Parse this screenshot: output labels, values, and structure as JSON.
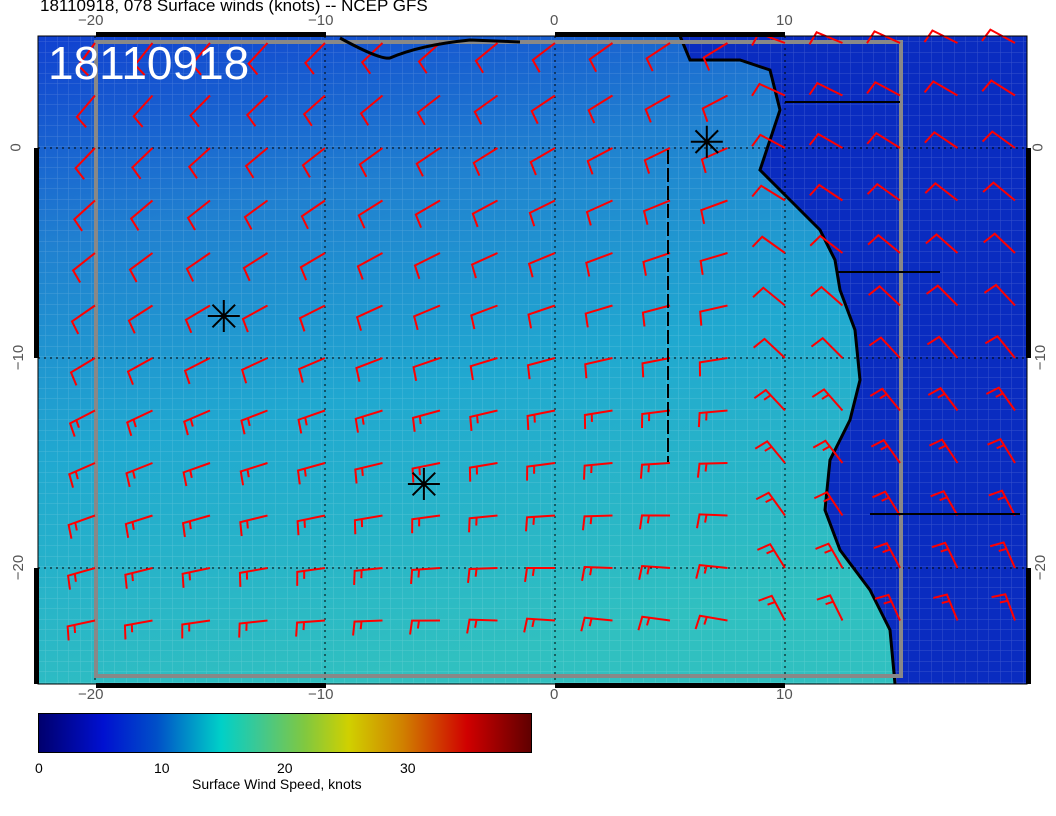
{
  "title": "18110918, 078 Surface winds (knots) -- NCEP GFS",
  "stamp": "18110918",
  "map": {
    "lon_range": [
      -22.5,
      20.5
    ],
    "lat_range": [
      -25.5,
      5.3
    ],
    "lon_ticks": [
      "−20",
      "−10",
      "0",
      "10"
    ],
    "lat_ticks": [
      "0",
      "−10",
      "−20"
    ],
    "markers": [
      {
        "icon": "asterisk-icon",
        "lon": -14.4,
        "lat": -8.0
      },
      {
        "icon": "asterisk-icon",
        "lon": -5.7,
        "lat": -16.0
      },
      {
        "icon": "asterisk-icon",
        "lon": 6.6,
        "lat": 0.3
      }
    ],
    "barb_color": "#ff0000",
    "coast_color": "#000000"
  },
  "colorbar": {
    "label": "Surface Wind Speed, knots",
    "range": [
      0,
      40
    ],
    "ticks": [
      "0",
      "10",
      "20",
      "30"
    ],
    "colormap": "jet"
  }
}
